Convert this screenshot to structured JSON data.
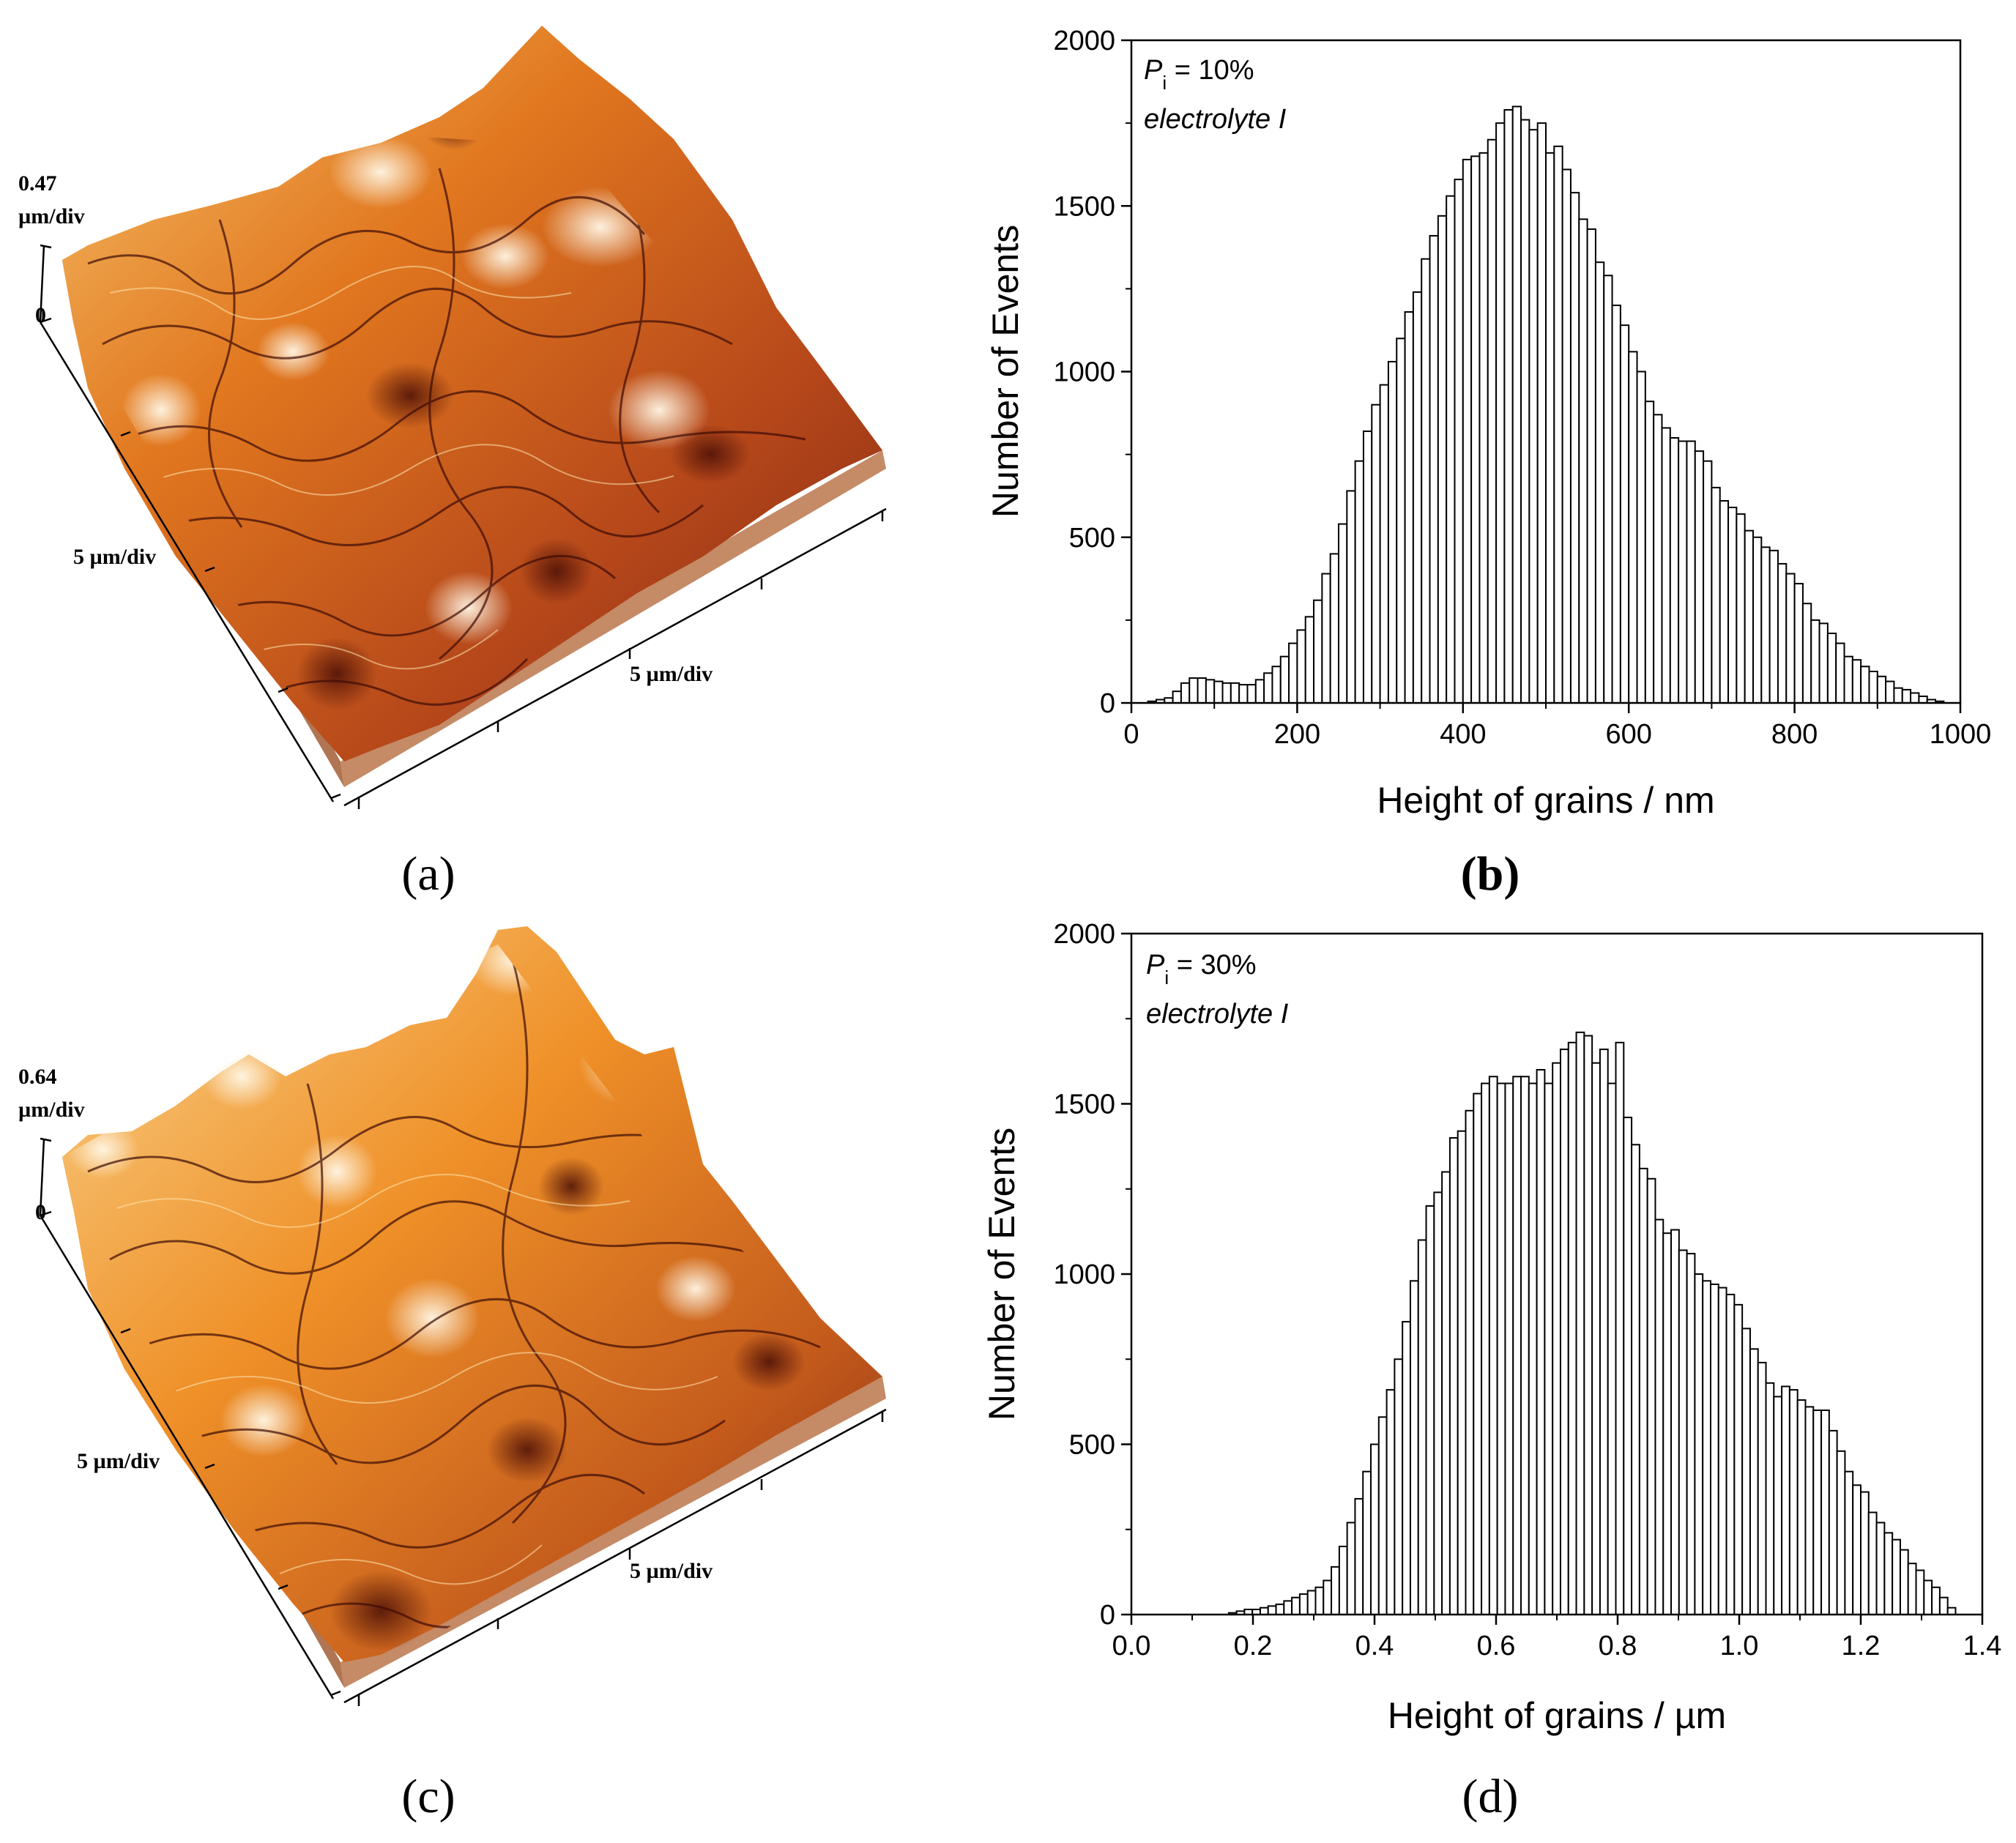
{
  "figure_labels": {
    "a": "(a)",
    "b": "(b)",
    "c": "(c)",
    "d": "(d)"
  },
  "panel_a": {
    "z_top_label": "0.47",
    "z_unit": "µm/div",
    "z_zero": "0",
    "x_axis_label": "5 µm/div",
    "y_axis_label": "5 µm/div",
    "colors": {
      "dark": "#5a1408",
      "mid": "#d2661a",
      "bright": "#f5a623",
      "highlight": "#fff3d6",
      "base": "#b07654"
    }
  },
  "panel_c": {
    "z_top_label": "0.64",
    "z_unit": "µm/div",
    "z_zero": "0",
    "x_axis_label": "5 µm/div",
    "y_axis_label": "5 µm/div",
    "colors": {
      "dark": "#5a1408",
      "mid": "#d2661a",
      "bright": "#f5a623",
      "highlight": "#fff3d6",
      "base": "#b07654"
    }
  },
  "chart_data": [
    {
      "panel": "b",
      "type": "bar",
      "title": "",
      "xlabel": "Height of grains / nm",
      "ylabel": "Number of Events",
      "xlim": [
        0,
        1000
      ],
      "ylim": [
        0,
        2000
      ],
      "xticks": [
        "0",
        "200",
        "400",
        "600",
        "800",
        "1000"
      ],
      "yticks": [
        "0",
        "500",
        "1000",
        "1500",
        "2000"
      ],
      "annotation_symbol": "P",
      "annotation_subscript": "i",
      "annotation_value": " = 10%",
      "annotation_line2": "electrolyte I",
      "bin_width": 10,
      "x": [
        5,
        15,
        25,
        35,
        45,
        55,
        65,
        75,
        85,
        95,
        105,
        115,
        125,
        135,
        145,
        155,
        165,
        175,
        185,
        195,
        205,
        215,
        225,
        235,
        245,
        255,
        265,
        275,
        285,
        295,
        305,
        315,
        325,
        335,
        345,
        355,
        365,
        375,
        385,
        395,
        405,
        415,
        425,
        435,
        445,
        455,
        465,
        475,
        485,
        495,
        505,
        515,
        525,
        535,
        545,
        555,
        565,
        575,
        585,
        595,
        605,
        615,
        625,
        635,
        645,
        655,
        665,
        675,
        685,
        695,
        705,
        715,
        725,
        735,
        745,
        755,
        765,
        775,
        785,
        795,
        805,
        815,
        825,
        835,
        845,
        855,
        865,
        875,
        885,
        895,
        905,
        915,
        925,
        935,
        945,
        955,
        965,
        975,
        985,
        995
      ],
      "values": [
        0,
        0,
        5,
        10,
        15,
        35,
        60,
        75,
        75,
        70,
        65,
        60,
        60,
        55,
        55,
        70,
        90,
        110,
        140,
        180,
        220,
        260,
        310,
        390,
        450,
        540,
        640,
        730,
        820,
        900,
        960,
        1030,
        1100,
        1180,
        1240,
        1340,
        1410,
        1470,
        1530,
        1580,
        1640,
        1650,
        1660,
        1700,
        1750,
        1790,
        1800,
        1760,
        1730,
        1750,
        1660,
        1680,
        1610,
        1540,
        1460,
        1430,
        1330,
        1290,
        1200,
        1140,
        1060,
        1000,
        910,
        870,
        830,
        800,
        790,
        790,
        760,
        730,
        650,
        610,
        590,
        570,
        520,
        500,
        470,
        460,
        420,
        390,
        360,
        300,
        250,
        240,
        210,
        180,
        140,
        130,
        110,
        95,
        80,
        65,
        45,
        40,
        30,
        20,
        10,
        5,
        0,
        0
      ]
    },
    {
      "panel": "d",
      "type": "bar",
      "title": "",
      "xlabel": "Height of grains / µm",
      "ylabel": "Number of Events",
      "xlim": [
        0,
        1.4
      ],
      "ylim": [
        0,
        2000
      ],
      "xticks": [
        "0.0",
        "0.2",
        "0.4",
        "0.6",
        "0.8",
        "1.0",
        "1.2",
        "1.4"
      ],
      "yticks": [
        "0",
        "500",
        "1000",
        "1500",
        "2000"
      ],
      "annotation_symbol": "P",
      "annotation_subscript": "i",
      "annotation_value": " = 30%",
      "annotation_line2": "electrolyte I",
      "bin_width": 0.013,
      "x": [
        0.1665,
        0.1795,
        0.1925,
        0.2055,
        0.2185,
        0.2315,
        0.2445,
        0.2575,
        0.2705,
        0.2835,
        0.2965,
        0.3095,
        0.3225,
        0.3355,
        0.3485,
        0.3615,
        0.3745,
        0.3875,
        0.4005,
        0.4135,
        0.4265,
        0.4395,
        0.4525,
        0.4655,
        0.4785,
        0.4915,
        0.5045,
        0.5175,
        0.5305,
        0.5435,
        0.5565,
        0.5695,
        0.5825,
        0.5955,
        0.6085,
        0.6215,
        0.6345,
        0.6475,
        0.6605,
        0.6735,
        0.6865,
        0.6995,
        0.7125,
        0.7255,
        0.7385,
        0.7515,
        0.7645,
        0.7775,
        0.7905,
        0.8035,
        0.8165,
        0.8295,
        0.8425,
        0.8555,
        0.8685,
        0.8815,
        0.8945,
        0.9075,
        0.9205,
        0.9335,
        0.9465,
        0.9595,
        0.9725,
        0.9855,
        0.9985,
        1.0115,
        1.0245,
        1.0375,
        1.0505,
        1.0635,
        1.0765,
        1.0895,
        1.1025,
        1.1155,
        1.1285,
        1.1415,
        1.1545,
        1.1675,
        1.1805,
        1.1935,
        1.2065,
        1.2195,
        1.2325,
        1.2455,
        1.2585,
        1.2715,
        1.2845,
        1.2975,
        1.3105,
        1.3235,
        1.3365,
        1.3495
      ],
      "values": [
        5,
        10,
        15,
        15,
        20,
        25,
        30,
        40,
        50,
        60,
        70,
        80,
        100,
        140,
        200,
        270,
        340,
        420,
        500,
        580,
        660,
        750,
        860,
        980,
        1100,
        1200,
        1240,
        1300,
        1400,
        1420,
        1480,
        1530,
        1560,
        1580,
        1560,
        1560,
        1580,
        1580,
        1560,
        1600,
        1560,
        1620,
        1660,
        1680,
        1710,
        1700,
        1620,
        1660,
        1560,
        1680,
        1460,
        1380,
        1310,
        1280,
        1160,
        1120,
        1130,
        1070,
        1060,
        1000,
        980,
        970,
        960,
        940,
        910,
        840,
        780,
        740,
        680,
        640,
        670,
        660,
        630,
        610,
        600,
        600,
        540,
        480,
        420,
        380,
        360,
        300,
        270,
        240,
        220,
        190,
        150,
        130,
        100,
        80,
        50,
        20
      ]
    }
  ]
}
